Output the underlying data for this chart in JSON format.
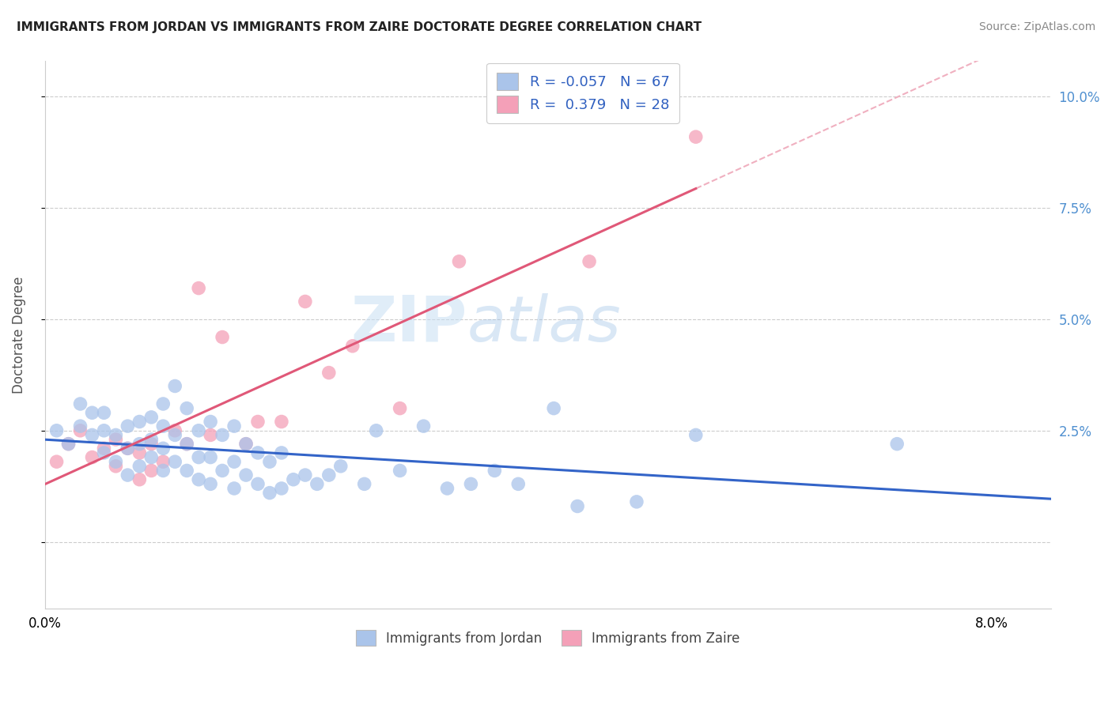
{
  "title": "IMMIGRANTS FROM JORDAN VS IMMIGRANTS FROM ZAIRE DOCTORATE DEGREE CORRELATION CHART",
  "source": "Source: ZipAtlas.com",
  "ylabel": "Doctorate Degree",
  "y_ticks": [
    0.0,
    0.025,
    0.05,
    0.075,
    0.1
  ],
  "y_tick_labels": [
    "",
    "2.5%",
    "5.0%",
    "7.5%",
    "10.0%"
  ],
  "x_tick_labels": [
    "0.0%",
    "",
    "",
    "",
    "8.0%"
  ],
  "xlim": [
    0.0,
    0.085
  ],
  "ylim": [
    -0.015,
    0.108
  ],
  "jordan_color": "#aac4ea",
  "zaire_color": "#f4a0b8",
  "jordan_line_color": "#3364c8",
  "zaire_line_color": "#e05878",
  "zaire_dash_color": "#f0b0c0",
  "watermark_text": "ZIPAtlas",
  "watermark_color": "#daeaf8",
  "legend_jordan_label": "R = -0.057   N = 67",
  "legend_zaire_label": "R =  0.379   N = 28",
  "legend_text_color": "#3060c0",
  "jordan_scatter_x": [
    0.001,
    0.002,
    0.003,
    0.003,
    0.004,
    0.004,
    0.005,
    0.005,
    0.005,
    0.006,
    0.006,
    0.007,
    0.007,
    0.007,
    0.008,
    0.008,
    0.008,
    0.009,
    0.009,
    0.009,
    0.01,
    0.01,
    0.01,
    0.01,
    0.011,
    0.011,
    0.011,
    0.012,
    0.012,
    0.012,
    0.013,
    0.013,
    0.013,
    0.014,
    0.014,
    0.014,
    0.015,
    0.015,
    0.016,
    0.016,
    0.016,
    0.017,
    0.017,
    0.018,
    0.018,
    0.019,
    0.019,
    0.02,
    0.02,
    0.021,
    0.022,
    0.023,
    0.024,
    0.025,
    0.027,
    0.028,
    0.03,
    0.032,
    0.034,
    0.036,
    0.038,
    0.04,
    0.043,
    0.045,
    0.05,
    0.055,
    0.072
  ],
  "jordan_scatter_y": [
    0.025,
    0.022,
    0.026,
    0.031,
    0.024,
    0.029,
    0.02,
    0.025,
    0.029,
    0.018,
    0.024,
    0.015,
    0.021,
    0.026,
    0.017,
    0.022,
    0.027,
    0.019,
    0.023,
    0.028,
    0.016,
    0.021,
    0.026,
    0.031,
    0.018,
    0.024,
    0.035,
    0.016,
    0.022,
    0.03,
    0.014,
    0.019,
    0.025,
    0.013,
    0.019,
    0.027,
    0.016,
    0.024,
    0.012,
    0.018,
    0.026,
    0.015,
    0.022,
    0.013,
    0.02,
    0.011,
    0.018,
    0.012,
    0.02,
    0.014,
    0.015,
    0.013,
    0.015,
    0.017,
    0.013,
    0.025,
    0.016,
    0.026,
    0.012,
    0.013,
    0.016,
    0.013,
    0.03,
    0.008,
    0.009,
    0.024,
    0.022
  ],
  "zaire_scatter_x": [
    0.001,
    0.002,
    0.003,
    0.004,
    0.005,
    0.006,
    0.006,
    0.007,
    0.008,
    0.008,
    0.009,
    0.009,
    0.01,
    0.011,
    0.012,
    0.013,
    0.014,
    0.015,
    0.017,
    0.018,
    0.02,
    0.022,
    0.024,
    0.026,
    0.03,
    0.035,
    0.046,
    0.055
  ],
  "zaire_scatter_y": [
    0.018,
    0.022,
    0.025,
    0.019,
    0.021,
    0.017,
    0.023,
    0.021,
    0.014,
    0.02,
    0.016,
    0.022,
    0.018,
    0.025,
    0.022,
    0.057,
    0.024,
    0.046,
    0.022,
    0.027,
    0.027,
    0.054,
    0.038,
    0.044,
    0.03,
    0.063,
    0.063,
    0.091
  ]
}
